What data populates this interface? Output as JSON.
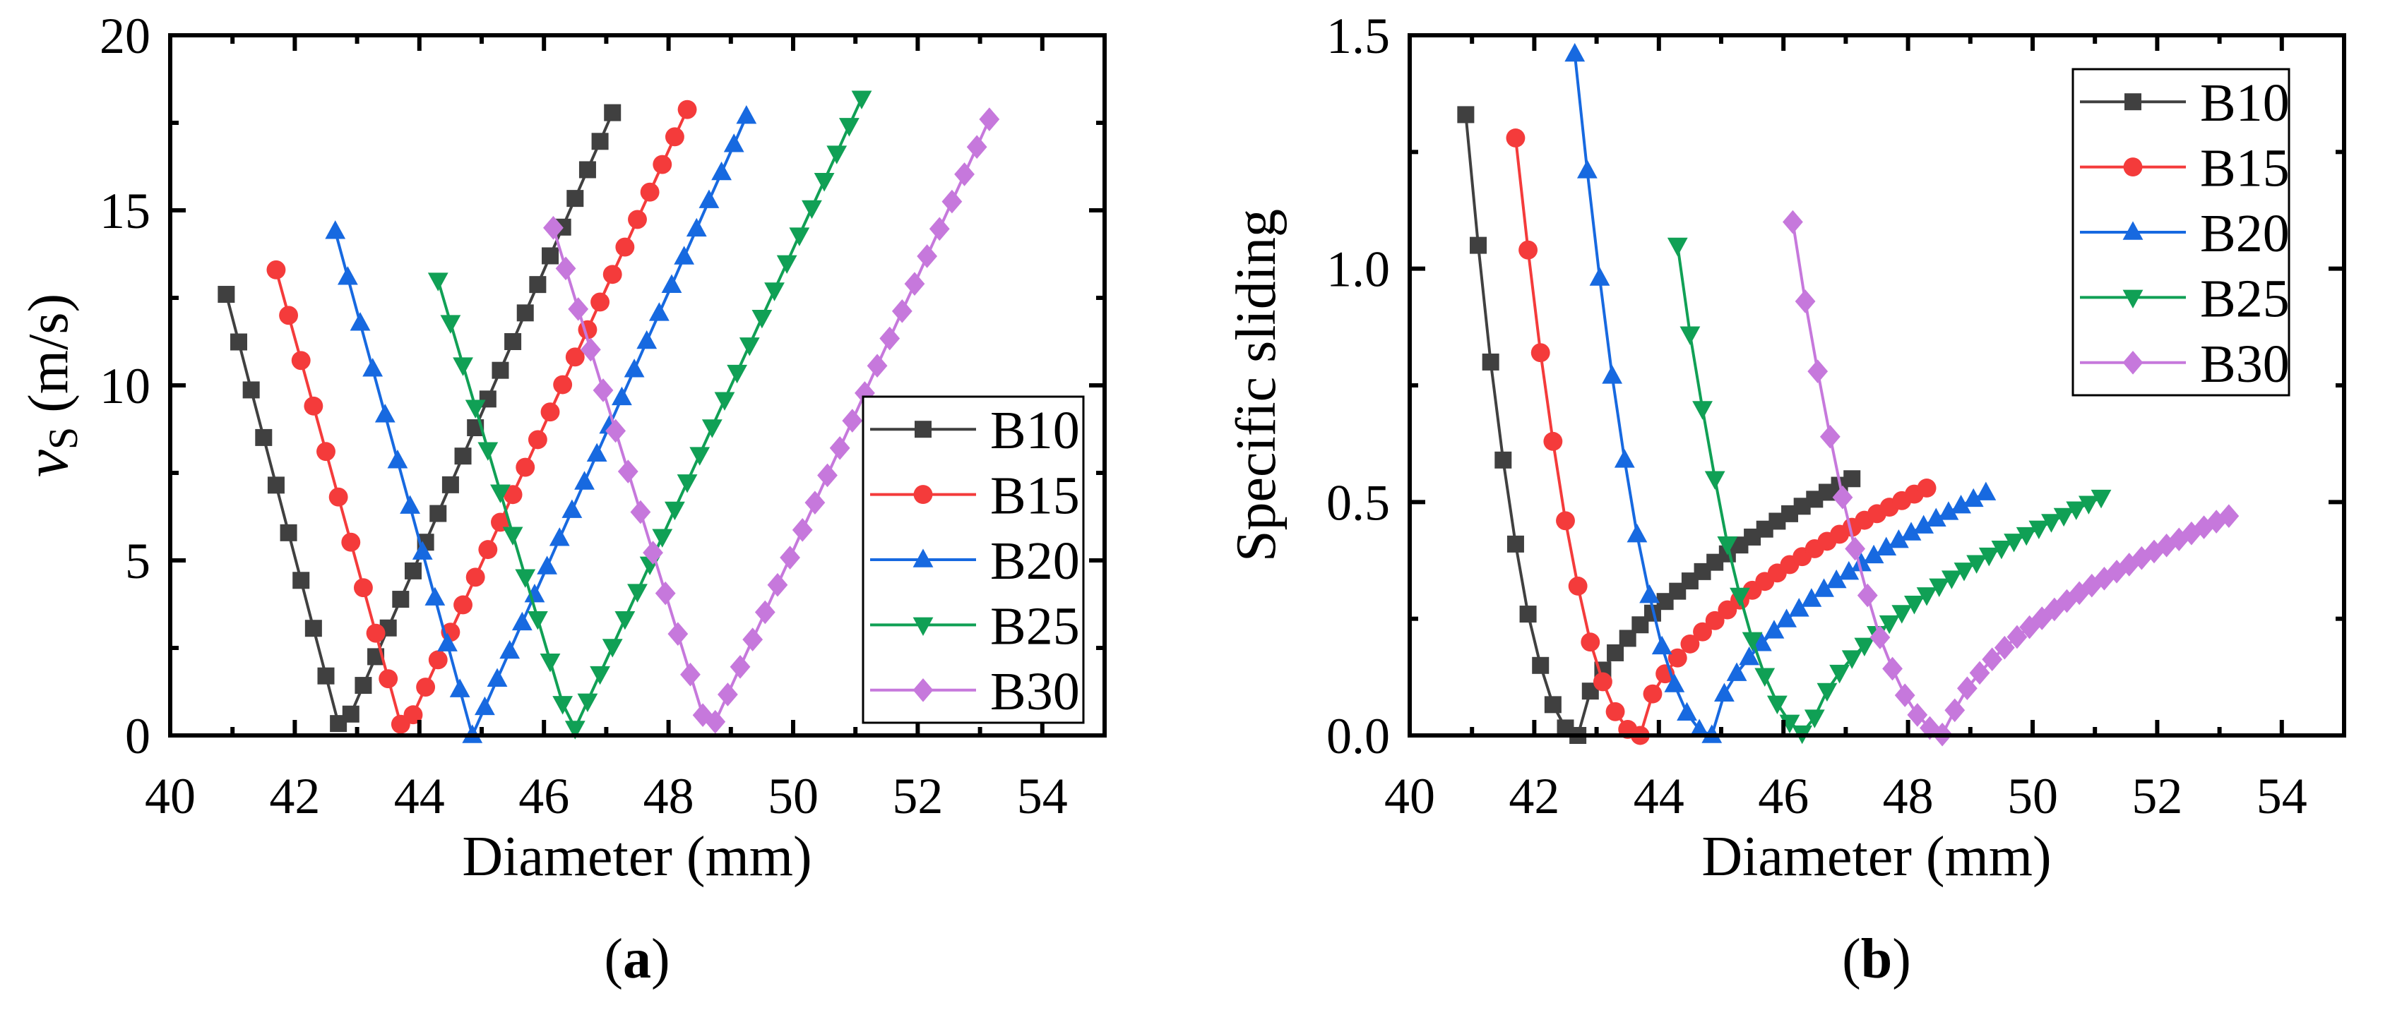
{
  "colors": {
    "B10": "#404040",
    "B15": "#f43b3b",
    "B20": "#1769e0",
    "B25": "#10a055",
    "B30": "#c678dc"
  },
  "markers": {
    "B10": "square",
    "B15": "circle",
    "B20": "triangle-up",
    "B25": "triangle-down",
    "B30": "diamond"
  },
  "chart_data": [
    {
      "type": "line",
      "caption_open": "(",
      "caption_letter": "a",
      "caption_close": ")",
      "xlabel": "Diameter (mm)",
      "ylabel_main": "v",
      "ylabel_sub": "S",
      "ylabel_unit": " (m/s)",
      "xlim": [
        40,
        55
      ],
      "ylim": [
        0,
        20
      ],
      "xticks": [
        40,
        42,
        44,
        46,
        48,
        50,
        52,
        54
      ],
      "yticks": [
        0,
        5,
        10,
        15,
        20
      ],
      "ytick_labels": [
        "0",
        "5",
        "10",
        "15",
        "20"
      ],
      "xminor": 1,
      "yminor": 2.5,
      "grid": false,
      "legend": "bottom-right",
      "series": [
        {
          "name": "B10",
          "x_start": 40.9,
          "x_step": 0.2,
          "y": [
            12.6,
            11.24,
            9.87,
            8.51,
            7.15,
            5.79,
            4.43,
            3.06,
            1.7,
            0.34,
            0.61,
            1.43,
            2.25,
            3.07,
            3.89,
            4.7,
            5.52,
            6.34,
            7.16,
            7.98,
            8.79,
            9.61,
            10.43,
            11.25,
            12.07,
            12.88,
            13.7,
            14.52,
            15.34,
            16.16,
            16.97,
            17.79
          ]
        },
        {
          "name": "B15",
          "x_start": 41.7,
          "x_step": 0.2,
          "y": [
            13.3,
            12.0,
            10.71,
            9.41,
            8.11,
            6.81,
            5.52,
            4.22,
            2.92,
            1.62,
            0.32,
            0.59,
            1.38,
            2.16,
            2.95,
            3.73,
            4.52,
            5.31,
            6.09,
            6.88,
            7.66,
            8.45,
            9.24,
            10.02,
            10.81,
            11.59,
            12.38,
            13.17,
            13.95,
            14.74,
            15.52,
            16.31,
            17.1,
            17.88
          ]
        },
        {
          "name": "B20",
          "x_start": 42.65,
          "x_step": 0.2,
          "y": [
            14.4,
            13.09,
            11.78,
            10.47,
            9.16,
            7.85,
            6.55,
            5.24,
            3.93,
            2.62,
            1.31,
            0,
            0.8,
            1.61,
            2.41,
            3.22,
            4.02,
            4.82,
            5.63,
            6.43,
            7.24,
            8.04,
            8.84,
            9.65,
            10.45,
            11.26,
            12.06,
            12.86,
            13.67,
            14.47,
            15.28,
            16.08,
            16.88,
            17.69
          ]
        },
        {
          "name": "B25",
          "x_start": 44.3,
          "x_step": 0.2,
          "y": [
            13.0,
            11.79,
            10.58,
            9.37,
            8.16,
            6.95,
            5.74,
            4.53,
            3.33,
            2.12,
            0.91,
            0.2,
            0.98,
            1.76,
            2.54,
            3.33,
            4.11,
            4.89,
            5.68,
            6.46,
            7.24,
            8.02,
            8.81,
            9.59,
            10.37,
            11.15,
            11.94,
            12.72,
            13.5,
            14.29,
            15.07,
            15.85,
            16.63,
            17.42,
            18.2
          ]
        },
        {
          "name": "B30",
          "x_start": 46.15,
          "x_step": 0.2,
          "y": [
            14.5,
            13.34,
            12.18,
            11.02,
            9.86,
            8.7,
            7.54,
            6.38,
            5.22,
            4.06,
            2.9,
            1.74,
            0.58,
            0.39,
            1.17,
            1.96,
            2.74,
            3.52,
            4.3,
            5.08,
            5.87,
            6.65,
            7.43,
            8.21,
            8.99,
            9.78,
            10.56,
            11.34,
            12.12,
            12.9,
            13.69,
            14.47,
            15.25,
            16.03,
            16.81,
            17.6
          ]
        }
      ]
    },
    {
      "type": "line",
      "caption_open": "(",
      "caption_letter": "b",
      "caption_close": ")",
      "xlabel": "Diameter (mm)",
      "ylabel": "Specific sliding",
      "xlim": [
        40,
        55
      ],
      "ylim": [
        0,
        1.5
      ],
      "xticks": [
        40,
        42,
        44,
        46,
        48,
        50,
        52,
        54
      ],
      "yticks": [
        0,
        0.5,
        1.0,
        1.5
      ],
      "ytick_labels": [
        "0.0",
        "0.5",
        "1.0",
        "1.5"
      ],
      "xminor": 1,
      "yminor": 0.25,
      "grid": false,
      "legend": "top-right",
      "series": [
        {
          "name": "B10",
          "x_start": 40.9,
          "x_step": 0.2,
          "y": [
            1.33,
            1.05,
            0.8,
            0.59,
            0.41,
            0.26,
            0.15,
            0.066,
            0.016,
            0,
            0.095,
            0.14,
            0.177,
            0.208,
            0.237,
            0.262,
            0.287,
            0.309,
            0.331,
            0.351,
            0.371,
            0.389,
            0.408,
            0.425,
            0.442,
            0.459,
            0.475,
            0.491,
            0.506,
            0.521,
            0.536,
            0.55
          ]
        },
        {
          "name": "B15",
          "x_start": 41.7,
          "x_step": 0.2,
          "y": [
            1.28,
            1.04,
            0.82,
            0.63,
            0.46,
            0.32,
            0.2,
            0.115,
            0.051,
            0.013,
            0,
            0.089,
            0.132,
            0.166,
            0.196,
            0.222,
            0.246,
            0.269,
            0.29,
            0.311,
            0.33,
            0.348,
            0.366,
            0.383,
            0.4,
            0.416,
            0.431,
            0.446,
            0.461,
            0.475,
            0.489,
            0.503,
            0.517,
            0.53
          ]
        },
        {
          "name": "B20",
          "x_start": 42.65,
          "x_step": 0.2,
          "y": [
            1.46,
            1.21,
            0.98,
            0.77,
            0.59,
            0.43,
            0.3,
            0.19,
            0.109,
            0.048,
            0.012,
            0,
            0.089,
            0.133,
            0.167,
            0.197,
            0.224,
            0.248,
            0.271,
            0.292,
            0.313,
            0.332,
            0.35,
            0.368,
            0.385,
            0.402,
            0.418,
            0.434,
            0.449,
            0.464,
            0.478,
            0.492,
            0.506,
            0.52
          ]
        },
        {
          "name": "B25",
          "x_start": 44.3,
          "x_step": 0.2,
          "y": [
            1.05,
            0.86,
            0.7,
            0.55,
            0.41,
            0.3,
            0.205,
            0.128,
            0.069,
            0.028,
            0.005,
            0.039,
            0.096,
            0.135,
            0.166,
            0.193,
            0.218,
            0.241,
            0.263,
            0.283,
            0.301,
            0.32,
            0.337,
            0.354,
            0.37,
            0.386,
            0.401,
            0.416,
            0.43,
            0.444,
            0.458,
            0.471,
            0.485,
            0.497,
            0.51
          ]
        },
        {
          "name": "B30",
          "x_start": 46.15,
          "x_step": 0.2,
          "y": [
            1.1,
            0.93,
            0.78,
            0.64,
            0.51,
            0.4,
            0.3,
            0.21,
            0.143,
            0.086,
            0.044,
            0.016,
            0.002,
            0.054,
            0.101,
            0.134,
            0.163,
            0.188,
            0.211,
            0.232,
            0.251,
            0.27,
            0.288,
            0.305,
            0.321,
            0.336,
            0.351,
            0.366,
            0.38,
            0.394,
            0.407,
            0.42,
            0.433,
            0.446,
            0.458,
            0.47
          ]
        }
      ]
    }
  ]
}
